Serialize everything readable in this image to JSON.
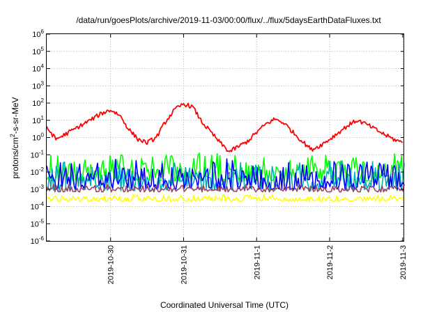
{
  "chart_data": {
    "type": "line",
    "title": "/data/run/goesPlots/archive/2019-11-03/00:00/flux/../flux/5daysEarthDataFluxes.txt",
    "xlabel": "Coordinated Universal Time (UTC)",
    "ylabel": {
      "base": "protons/cm",
      "sup": "2",
      "rest": "-s-sr-MeV"
    },
    "yscale": "log",
    "ylim": [
      1e-06,
      1000000.0
    ],
    "y_ticks": [
      {
        "base": "10",
        "exp": "-6"
      },
      {
        "base": "10",
        "exp": "-5"
      },
      {
        "base": "10",
        "exp": "-4"
      },
      {
        "base": "10",
        "exp": "-3"
      },
      {
        "base": "10",
        "exp": "-2"
      },
      {
        "base": "10",
        "exp": "-1"
      },
      {
        "base": "10",
        "exp": "0"
      },
      {
        "base": "10",
        "exp": "1"
      },
      {
        "base": "10",
        "exp": "2"
      },
      {
        "base": "10",
        "exp": "3"
      },
      {
        "base": "10",
        "exp": "4"
      },
      {
        "base": "10",
        "exp": "5"
      },
      {
        "base": "10",
        "exp": "6"
      }
    ],
    "xlim": [
      "2019-10-29T03:00",
      "2019-11-03T00:30"
    ],
    "x_ticks": [
      "2019-10-30",
      "2019-10-31",
      "2019-11-1",
      "2019-11-2",
      "2019-11-3"
    ],
    "grid": true,
    "series": [
      {
        "color": "#ff0000",
        "x": [
          "2019-10-29T03:00",
          "2019-10-29T06:00",
          "2019-10-29T09:00",
          "2019-10-29T12:00",
          "2019-10-29T15:00",
          "2019-10-29T18:00",
          "2019-10-29T21:00",
          "2019-10-30T00:00",
          "2019-10-30T03:00",
          "2019-10-30T06:00",
          "2019-10-30T09:00",
          "2019-10-30T12:00",
          "2019-10-30T15:00",
          "2019-10-30T18:00",
          "2019-10-30T21:00",
          "2019-10-31T00:00",
          "2019-10-31T03:00",
          "2019-10-31T06:00",
          "2019-10-31T09:00",
          "2019-10-31T12:00",
          "2019-10-31T15:00",
          "2019-10-31T18:00",
          "2019-10-31T21:00",
          "2019-11-01T00:00",
          "2019-11-01T03:00",
          "2019-11-01T06:00",
          "2019-11-01T09:00",
          "2019-11-01T12:00",
          "2019-11-01T15:00",
          "2019-11-01T18:00",
          "2019-11-01T21:00",
          "2019-11-02T00:00",
          "2019-11-02T03:00",
          "2019-11-02T06:00",
          "2019-11-02T09:00",
          "2019-11-02T12:00",
          "2019-11-02T15:00",
          "2019-11-02T18:00",
          "2019-11-02T21:00",
          "2019-11-03T00:00"
        ],
        "y": [
          4,
          0.8,
          1.5,
          3,
          6,
          12,
          25,
          40,
          20,
          3,
          0.8,
          0.5,
          1,
          8,
          40,
          90,
          60,
          8,
          2,
          0.5,
          0.15,
          0.3,
          0.6,
          2,
          6,
          12,
          7,
          2,
          0.6,
          0.2,
          0.35,
          0.8,
          2,
          5,
          10,
          6,
          3,
          1.5,
          0.8,
          0.5
        ]
      },
      {
        "color": "#00ff00",
        "band": [
          0.003,
          0.15
        ]
      },
      {
        "color": "#00b0b0",
        "band": [
          0.0008,
          0.05
        ]
      },
      {
        "color": "#0000ff",
        "band": [
          0.001,
          0.06
        ]
      },
      {
        "color": "#994466",
        "band": [
          0.0007,
          0.002
        ]
      },
      {
        "color": "#ffff00",
        "band": [
          0.0002,
          0.0005
        ]
      }
    ]
  }
}
